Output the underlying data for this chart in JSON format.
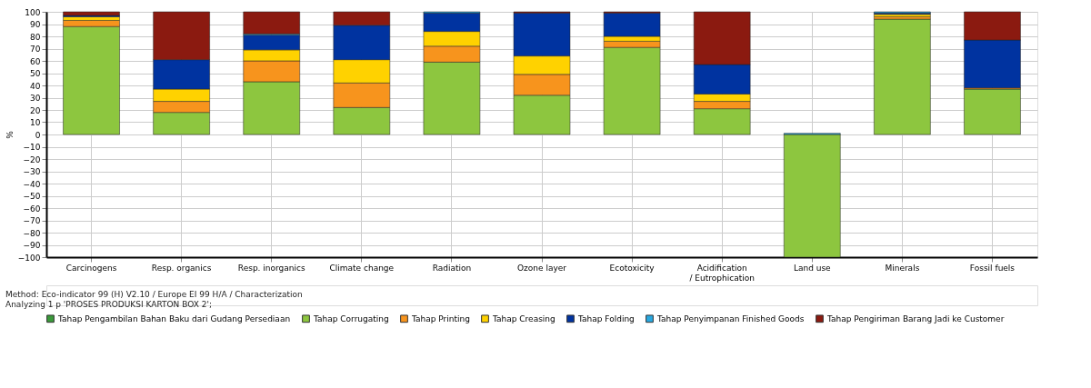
{
  "chart_data": {
    "type": "bar",
    "stacked": true,
    "ylabel": "%",
    "categories": [
      "Carcinogens",
      "Resp. organics",
      "Resp. inorganics",
      "Climate change",
      "Radiation",
      "Ozone layer",
      "Ecotoxicity",
      "Acidification\n/ Eutrophication",
      "Land use",
      "Minerals",
      "Fossil fuels"
    ],
    "series": [
      {
        "name": "Tahap Pengambilan Bahan Baku dari Gudang Persediaan",
        "color": "#3a9a3a",
        "values": [
          null,
          null,
          null,
          null,
          null,
          null,
          null,
          null,
          null,
          null,
          null
        ]
      },
      {
        "name": "Tahap Corrugating",
        "color": "#8dc63f",
        "values": [
          88,
          18,
          43,
          22,
          59,
          32,
          71,
          21,
          -100,
          94,
          37
        ]
      },
      {
        "name": "Tahap Printing",
        "color": "#f7941d",
        "values": [
          5,
          9,
          17,
          20,
          13,
          17,
          5,
          6,
          null,
          2,
          1
        ]
      },
      {
        "name": "Tahap Creasing",
        "color": "#ffd200",
        "values": [
          3,
          10,
          9,
          19,
          12,
          15,
          4,
          6,
          null,
          2,
          null
        ]
      },
      {
        "name": "Tahap Folding",
        "color": "#0033a0",
        "values": [
          1,
          24,
          12,
          28,
          15,
          35,
          19,
          24,
          null,
          1,
          39
        ]
      },
      {
        "name": "Tahap Penyimpanan Finished Goods",
        "color": "#29a8e0",
        "values": [
          null,
          null,
          1,
          null,
          1,
          null,
          null,
          null,
          1,
          1,
          null
        ]
      },
      {
        "name": "Tahap Pengiriman Barang Jadi ke Customer",
        "color": "#8b1a10",
        "values": [
          3,
          39,
          18,
          11,
          null,
          1,
          1,
          43,
          null,
          null,
          23
        ]
      }
    ],
    "ylim": [
      -100,
      100
    ],
    "yticks": [
      -100,
      -90,
      -80,
      -70,
      -60,
      -50,
      -40,
      -30,
      -20,
      -10,
      0,
      10,
      20,
      30,
      40,
      50,
      60,
      70,
      80,
      90,
      100
    ],
    "grid": true,
    "legend": "bottom",
    "annotations": [
      "Method: Eco-indicator 99 (H) V2.10 / Europe EI 99 H/A / Characterization",
      "Analyzing 1 p 'PROSES PRODUKSI KARTON BOX 2';"
    ]
  }
}
